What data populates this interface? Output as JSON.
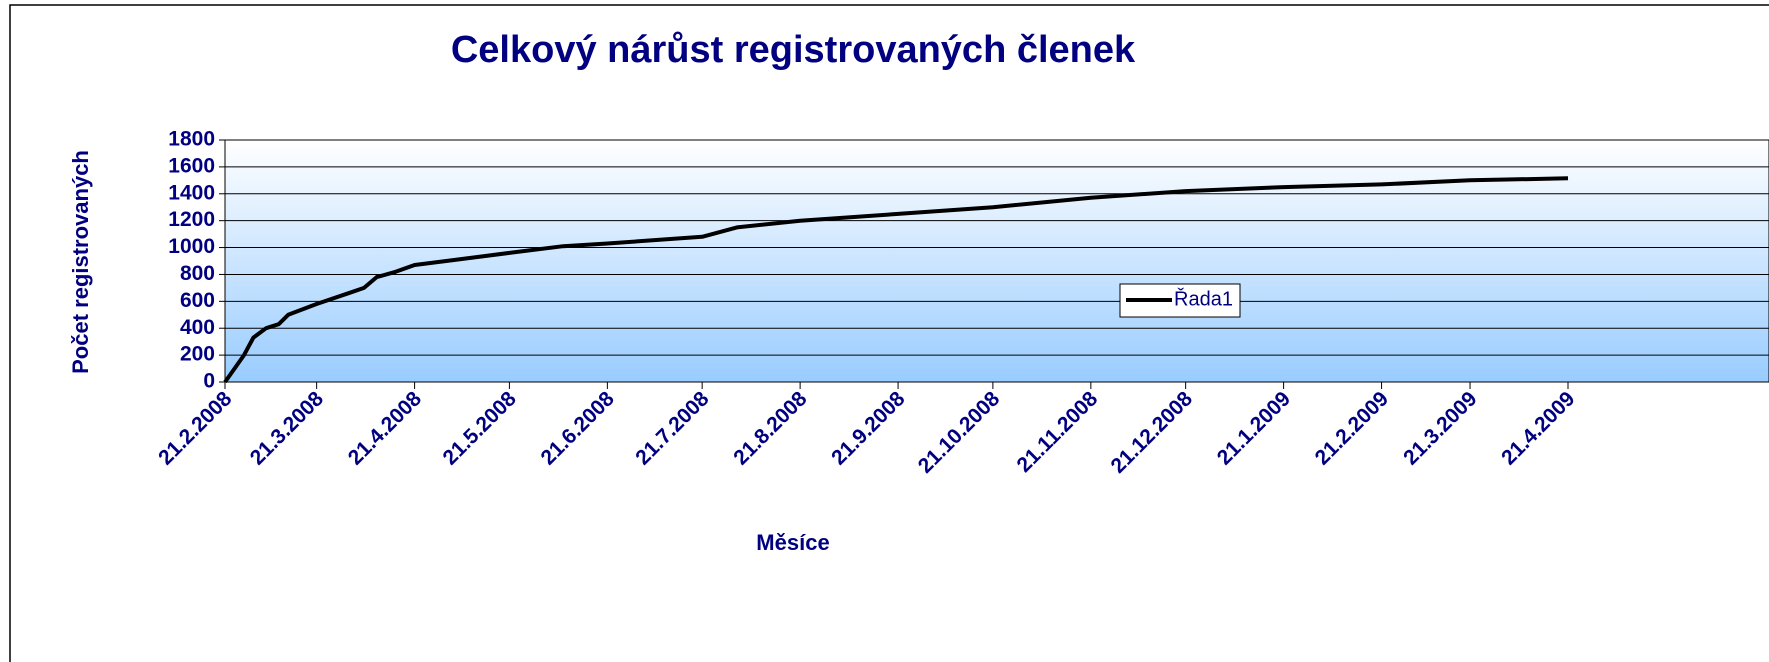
{
  "chart_data": {
    "type": "line",
    "title": "Celkový nárůst registrovaných členek",
    "x_label": "Měsíce",
    "y_label": "Počet registrovaných",
    "x": [
      "2008-02-21",
      "2008-02-24",
      "2008-02-27",
      "2008-03-01",
      "2008-03-05",
      "2008-03-09",
      "2008-03-12",
      "2008-03-21",
      "2008-03-31",
      "2008-04-05",
      "2008-04-09",
      "2008-04-15",
      "2008-04-21",
      "2008-05-01",
      "2008-05-21",
      "2008-06-07",
      "2008-06-21",
      "2008-07-21",
      "2008-08-01",
      "2008-08-21",
      "2008-09-21",
      "2008-10-21",
      "2008-11-21",
      "2008-12-21",
      "2009-01-21",
      "2009-02-21",
      "2009-03-21",
      "2009-04-21"
    ],
    "series": [
      {
        "name": "Řada1",
        "color": "#000000",
        "values": [
          0,
          100,
          200,
          330,
          400,
          430,
          500,
          580,
          660,
          700,
          780,
          820,
          870,
          900,
          960,
          1010,
          1030,
          1080,
          1150,
          1200,
          1250,
          1300,
          1370,
          1420,
          1450,
          1470,
          1500,
          1515
        ]
      }
    ],
    "xlim": [
      "2008-02-21",
      "2009-04-21"
    ],
    "xticks": [
      {
        "value": "2008-02-21",
        "label": "21.2.2008"
      },
      {
        "value": "2008-03-21",
        "label": "21.3.2008"
      },
      {
        "value": "2008-04-21",
        "label": "21.4.2008"
      },
      {
        "value": "2008-05-21",
        "label": "21.5.2008"
      },
      {
        "value": "2008-06-21",
        "label": "21.6.2008"
      },
      {
        "value": "2008-07-21",
        "label": "21.7.2008"
      },
      {
        "value": "2008-08-21",
        "label": "21.8.2008"
      },
      {
        "value": "2008-09-21",
        "label": "21.9.2008"
      },
      {
        "value": "2008-10-21",
        "label": "21.10.2008"
      },
      {
        "value": "2008-11-21",
        "label": "21.11.2008"
      },
      {
        "value": "2008-12-21",
        "label": "21.12.2008"
      },
      {
        "value": "2009-01-21",
        "label": "21.1.2009"
      },
      {
        "value": "2009-02-21",
        "label": "21.2.2009"
      },
      {
        "value": "2009-03-21",
        "label": "21.3.2009"
      },
      {
        "value": "2009-04-21",
        "label": "21.4.2009"
      }
    ],
    "ylim": [
      0,
      1800
    ],
    "yticks": [
      0,
      200,
      400,
      600,
      800,
      1000,
      1200,
      1400,
      1600,
      1800
    ],
    "grid": true,
    "legend": "right"
  }
}
